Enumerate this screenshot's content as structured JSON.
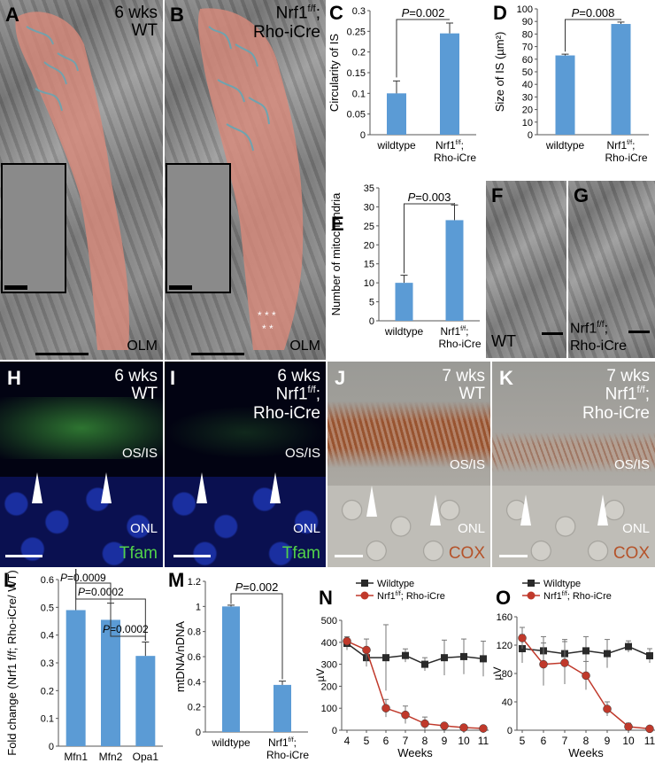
{
  "panels": {
    "A": {
      "label": "A",
      "age": "6 wks",
      "genotype": "WT",
      "marker": "OLM"
    },
    "B": {
      "label": "B",
      "age": "Nrf1",
      "genotype_sup": "f/f",
      "genotype_tail": ";",
      "genotype2": "Rho-iCre",
      "marker": "OLM"
    },
    "C": {
      "label": "C"
    },
    "D": {
      "label": "D"
    },
    "E": {
      "label": "E"
    },
    "F": {
      "label": "F",
      "caption": "WT"
    },
    "G": {
      "label": "G",
      "caption1": "Nrf1",
      "caption_sup": "f/f",
      "caption_tail": ";",
      "caption2": "Rho-iCre"
    },
    "H": {
      "label": "H",
      "age": "6 wks",
      "genotype": "WT",
      "layer1": "OS/IS",
      "layer2": "ONL",
      "stain": "Tfam"
    },
    "I": {
      "label": "I",
      "age": "6 wks",
      "genotype1": "Nrf1",
      "genotype_sup": "f/f",
      "genotype_tail": ";",
      "genotype2": "Rho-iCre",
      "layer1": "OS/IS",
      "layer2": "ONL",
      "stain": "Tfam"
    },
    "J": {
      "label": "J",
      "age": "7 wks",
      "genotype": "WT",
      "layer1": "OS/IS",
      "layer2": "ONL",
      "stain": "COX"
    },
    "K": {
      "label": "K",
      "age": "7 wks",
      "genotype1": "Nrf1",
      "genotype_sup": "f/f",
      "genotype_tail": ";",
      "genotype2": "Rho-iCre",
      "layer1": "OS/IS",
      "layer2": "ONL",
      "stain": "COX"
    },
    "L": {
      "label": "L"
    },
    "M": {
      "label": "M"
    },
    "N": {
      "label": "N"
    },
    "O": {
      "label": "O"
    }
  },
  "colors": {
    "bar": "#5b9bd5",
    "wt_line": "#2a2a2a",
    "mut_line": "#c0392b",
    "tfam": "#52d24a",
    "cox": "#b5532a",
    "mito": "#d98a7a"
  },
  "chart_data": [
    {
      "panel": "C",
      "type": "bar",
      "categories": [
        "wildtype",
        "Nrf1f/f; Rho-iCre"
      ],
      "values": [
        0.1,
        0.245
      ],
      "errors": [
        0.03,
        0.025
      ],
      "ylabel": "Circularity of IS",
      "ylim": [
        0,
        0.3
      ],
      "yticks": [
        "0",
        "0.05",
        "0.1",
        "0.15",
        "0.2",
        "0.25",
        "0.3"
      ],
      "annotation": "P=0.002"
    },
    {
      "panel": "D",
      "type": "bar",
      "categories": [
        "wildtype",
        "Nrf1f/f; Rho-iCre"
      ],
      "values": [
        63,
        88
      ],
      "errors": [
        1,
        1.5
      ],
      "ylabel": "Size of IS (µm²)",
      "ylim": [
        0,
        100
      ],
      "yticks": [
        "0",
        "10",
        "20",
        "30",
        "40",
        "50",
        "60",
        "70",
        "80",
        "90",
        "100"
      ],
      "annotation": "P=0.008"
    },
    {
      "panel": "E",
      "type": "bar",
      "categories": [
        "wildtype",
        "Nrf1f/f; Rho-iCre"
      ],
      "values": [
        10,
        26.5
      ],
      "errors": [
        2,
        4
      ],
      "ylabel": "Number of mitochondria",
      "ylim": [
        0,
        35
      ],
      "yticks": [
        "0",
        "5",
        "10",
        "15",
        "20",
        "25",
        "30",
        "35"
      ],
      "annotation": "P=0.003"
    },
    {
      "panel": "L",
      "type": "bar",
      "categories": [
        "Mfn1",
        "Mfn2",
        "Opa1"
      ],
      "values": [
        0.49,
        0.455,
        0.325
      ],
      "errors": [
        0.18,
        0.06,
        0.05
      ],
      "ylabel": "Fold change (Nrf1 f/f; Rho-iCre/ WT)",
      "ylim": [
        0,
        0.6
      ],
      "yticks": [
        "0",
        "0.1",
        "0.2",
        "0.3",
        "0.4",
        "0.5",
        "0.6"
      ],
      "annotations": [
        "P=0.0009",
        "P=0.0002",
        "P=0.0002"
      ]
    },
    {
      "panel": "M",
      "type": "bar",
      "categories": [
        "wildtype",
        "Nrf1f/f; Rho-iCre"
      ],
      "values": [
        1.0,
        0.375
      ],
      "errors": [
        0.01,
        0.03
      ],
      "ylabel": "mtDNA/nDNA",
      "ylim": [
        0,
        1.2
      ],
      "yticks": [
        "0",
        "0.2",
        "0.4",
        "0.6",
        "0.8",
        "1",
        "1.2"
      ],
      "annotation": "P=0.002"
    },
    {
      "panel": "N",
      "type": "line",
      "x": [
        4,
        5,
        6,
        7,
        8,
        9,
        10,
        11
      ],
      "xlabel": "Weeks",
      "ylabel": "µV",
      "ylim": [
        0,
        500
      ],
      "yticks": [
        "0",
        "100",
        "200",
        "300",
        "400",
        "500"
      ],
      "series": [
        {
          "name": "Wildtype",
          "values": [
            395,
            330,
            330,
            340,
            300,
            330,
            335,
            325
          ],
          "errors": [
            30,
            40,
            150,
            30,
            30,
            80,
            80,
            80
          ]
        },
        {
          "name": "Nrf1f/f; Rho-iCre",
          "values": [
            405,
            365,
            100,
            70,
            30,
            20,
            12,
            8
          ],
          "errors": [
            20,
            50,
            40,
            40,
            30,
            10,
            8,
            5
          ]
        }
      ]
    },
    {
      "panel": "O",
      "type": "line",
      "x": [
        5,
        6,
        7,
        8,
        9,
        10,
        11
      ],
      "xlabel": "Weeks",
      "ylabel": "µV",
      "ylim": [
        0,
        160
      ],
      "yticks": [
        "0",
        "40",
        "80",
        "120",
        "160"
      ],
      "series": [
        {
          "name": "Wildtype",
          "values": [
            115,
            112,
            108,
            112,
            108,
            118,
            105
          ],
          "errors": [
            20,
            20,
            20,
            20,
            20,
            8,
            10
          ]
        },
        {
          "name": "Nrf1f/f; Rho-iCre",
          "values": [
            130,
            93,
            95,
            77,
            30,
            5,
            2
          ],
          "errors": [
            15,
            30,
            30,
            20,
            10,
            5,
            3
          ]
        }
      ]
    }
  ]
}
